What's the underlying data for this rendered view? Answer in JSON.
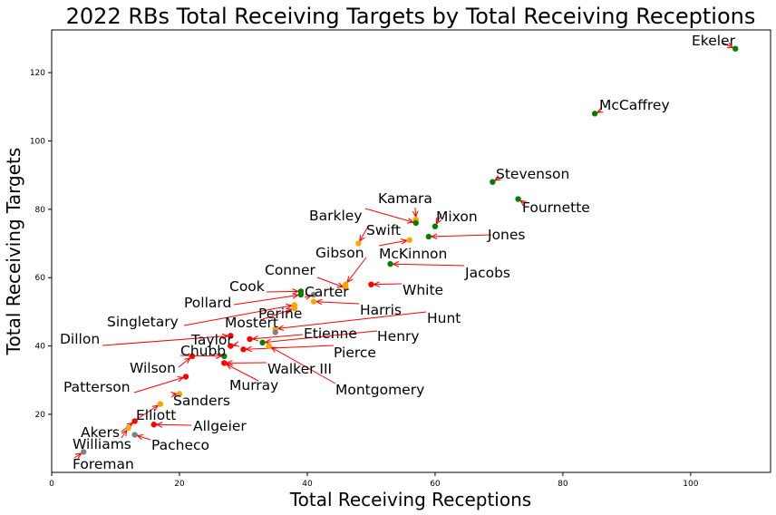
{
  "chart_data": {
    "type": "scatter",
    "title": "2022 RBs Total Receiving Targets by Total Receiving Receptions",
    "xlabel": "Total Receiving Receptions",
    "ylabel": "Total Receiving Targets",
    "xlim": [
      0,
      112.5
    ],
    "ylim": [
      3,
      132.5
    ],
    "xticks": [
      0,
      20,
      40,
      60,
      80,
      100
    ],
    "yticks": [
      20,
      40,
      60,
      80,
      100,
      120
    ],
    "grid": false,
    "legend": "none",
    "colors": {
      "green": "#008000",
      "orange": "#ffa500",
      "red": "#ff0000",
      "gray": "#808080",
      "arrow": "#ff0000"
    },
    "points": [
      {
        "label": "Ekeler",
        "x": 107,
        "y": 127,
        "color": "green"
      },
      {
        "label": "McCaffrey",
        "x": 85,
        "y": 108,
        "color": "green"
      },
      {
        "label": "Stevenson",
        "x": 69,
        "y": 88,
        "color": "green"
      },
      {
        "label": "Fournette",
        "x": 73,
        "y": 83,
        "color": "green"
      },
      {
        "label": "Kamara",
        "x": 57,
        "y": 77,
        "color": "orange"
      },
      {
        "label": "Barkley",
        "x": 57,
        "y": 76,
        "color": "green"
      },
      {
        "label": "Mixon",
        "x": 60,
        "y": 75,
        "color": "green"
      },
      {
        "label": "Jones",
        "x": 59,
        "y": 72,
        "color": "green"
      },
      {
        "label": "Swift",
        "x": 48,
        "y": 70,
        "color": "orange"
      },
      {
        "label": "McKinnon",
        "x": 56,
        "y": 71,
        "color": "orange"
      },
      {
        "label": "Jacobs",
        "x": 53,
        "y": 64,
        "color": "green"
      },
      {
        "label": "Gibson",
        "x": 46,
        "y": 58,
        "color": "orange"
      },
      {
        "label": "Conner",
        "x": 46,
        "y": 57,
        "color": "orange"
      },
      {
        "label": "White",
        "x": 50,
        "y": 58,
        "color": "red"
      },
      {
        "label": "Cook",
        "x": 39,
        "y": 56,
        "color": "green"
      },
      {
        "label": "Carter",
        "x": 41,
        "y": 55,
        "color": "gray"
      },
      {
        "label": "Pollard",
        "x": 39,
        "y": 55,
        "color": "green"
      },
      {
        "label": "Harris",
        "x": 41,
        "y": 53,
        "color": "orange"
      },
      {
        "label": "Singletary",
        "x": 38,
        "y": 52,
        "color": "orange"
      },
      {
        "label": "Perine",
        "x": 38,
        "y": 51,
        "color": "orange"
      },
      {
        "label": "Hunt",
        "x": 35,
        "y": 45,
        "color": "orange"
      },
      {
        "label": "Mostert",
        "x": 35,
        "y": 44,
        "color": "gray"
      },
      {
        "label": "Etienne",
        "x": 31,
        "y": 42,
        "color": "red"
      },
      {
        "label": "Henry",
        "x": 33,
        "y": 41,
        "color": "green"
      },
      {
        "label": "Dillon",
        "x": 28,
        "y": 43,
        "color": "red"
      },
      {
        "label": "Taylor",
        "x": 28,
        "y": 40,
        "color": "red"
      },
      {
        "label": "Pierce",
        "x": 30,
        "y": 39,
        "color": "red"
      },
      {
        "label": "Montgomery",
        "x": 34,
        "y": 40,
        "color": "orange"
      },
      {
        "label": "Chubb",
        "x": 27,
        "y": 37,
        "color": "green"
      },
      {
        "label": "Wilson",
        "x": 22,
        "y": 37,
        "color": "red"
      },
      {
        "label": "Walker III",
        "x": 27,
        "y": 35,
        "color": "red"
      },
      {
        "label": "Murray",
        "x": 27,
        "y": 35,
        "color": "red"
      },
      {
        "label": "Patterson",
        "x": 21,
        "y": 31,
        "color": "red"
      },
      {
        "label": "Sanders",
        "x": 20,
        "y": 26,
        "color": "orange"
      },
      {
        "label": "Elliott",
        "x": 17,
        "y": 23,
        "color": "orange"
      },
      {
        "label": "Allgeier",
        "x": 16,
        "y": 17,
        "color": "red"
      },
      {
        "label": "Akers",
        "x": 13,
        "y": 18,
        "color": "red"
      },
      {
        "label": "Williams",
        "x": 12,
        "y": 16,
        "color": "orange"
      },
      {
        "label": "Pacheco",
        "x": 13,
        "y": 14,
        "color": "gray"
      },
      {
        "label": "Foreman",
        "x": 5,
        "y": 9,
        "color": "gray"
      }
    ]
  }
}
